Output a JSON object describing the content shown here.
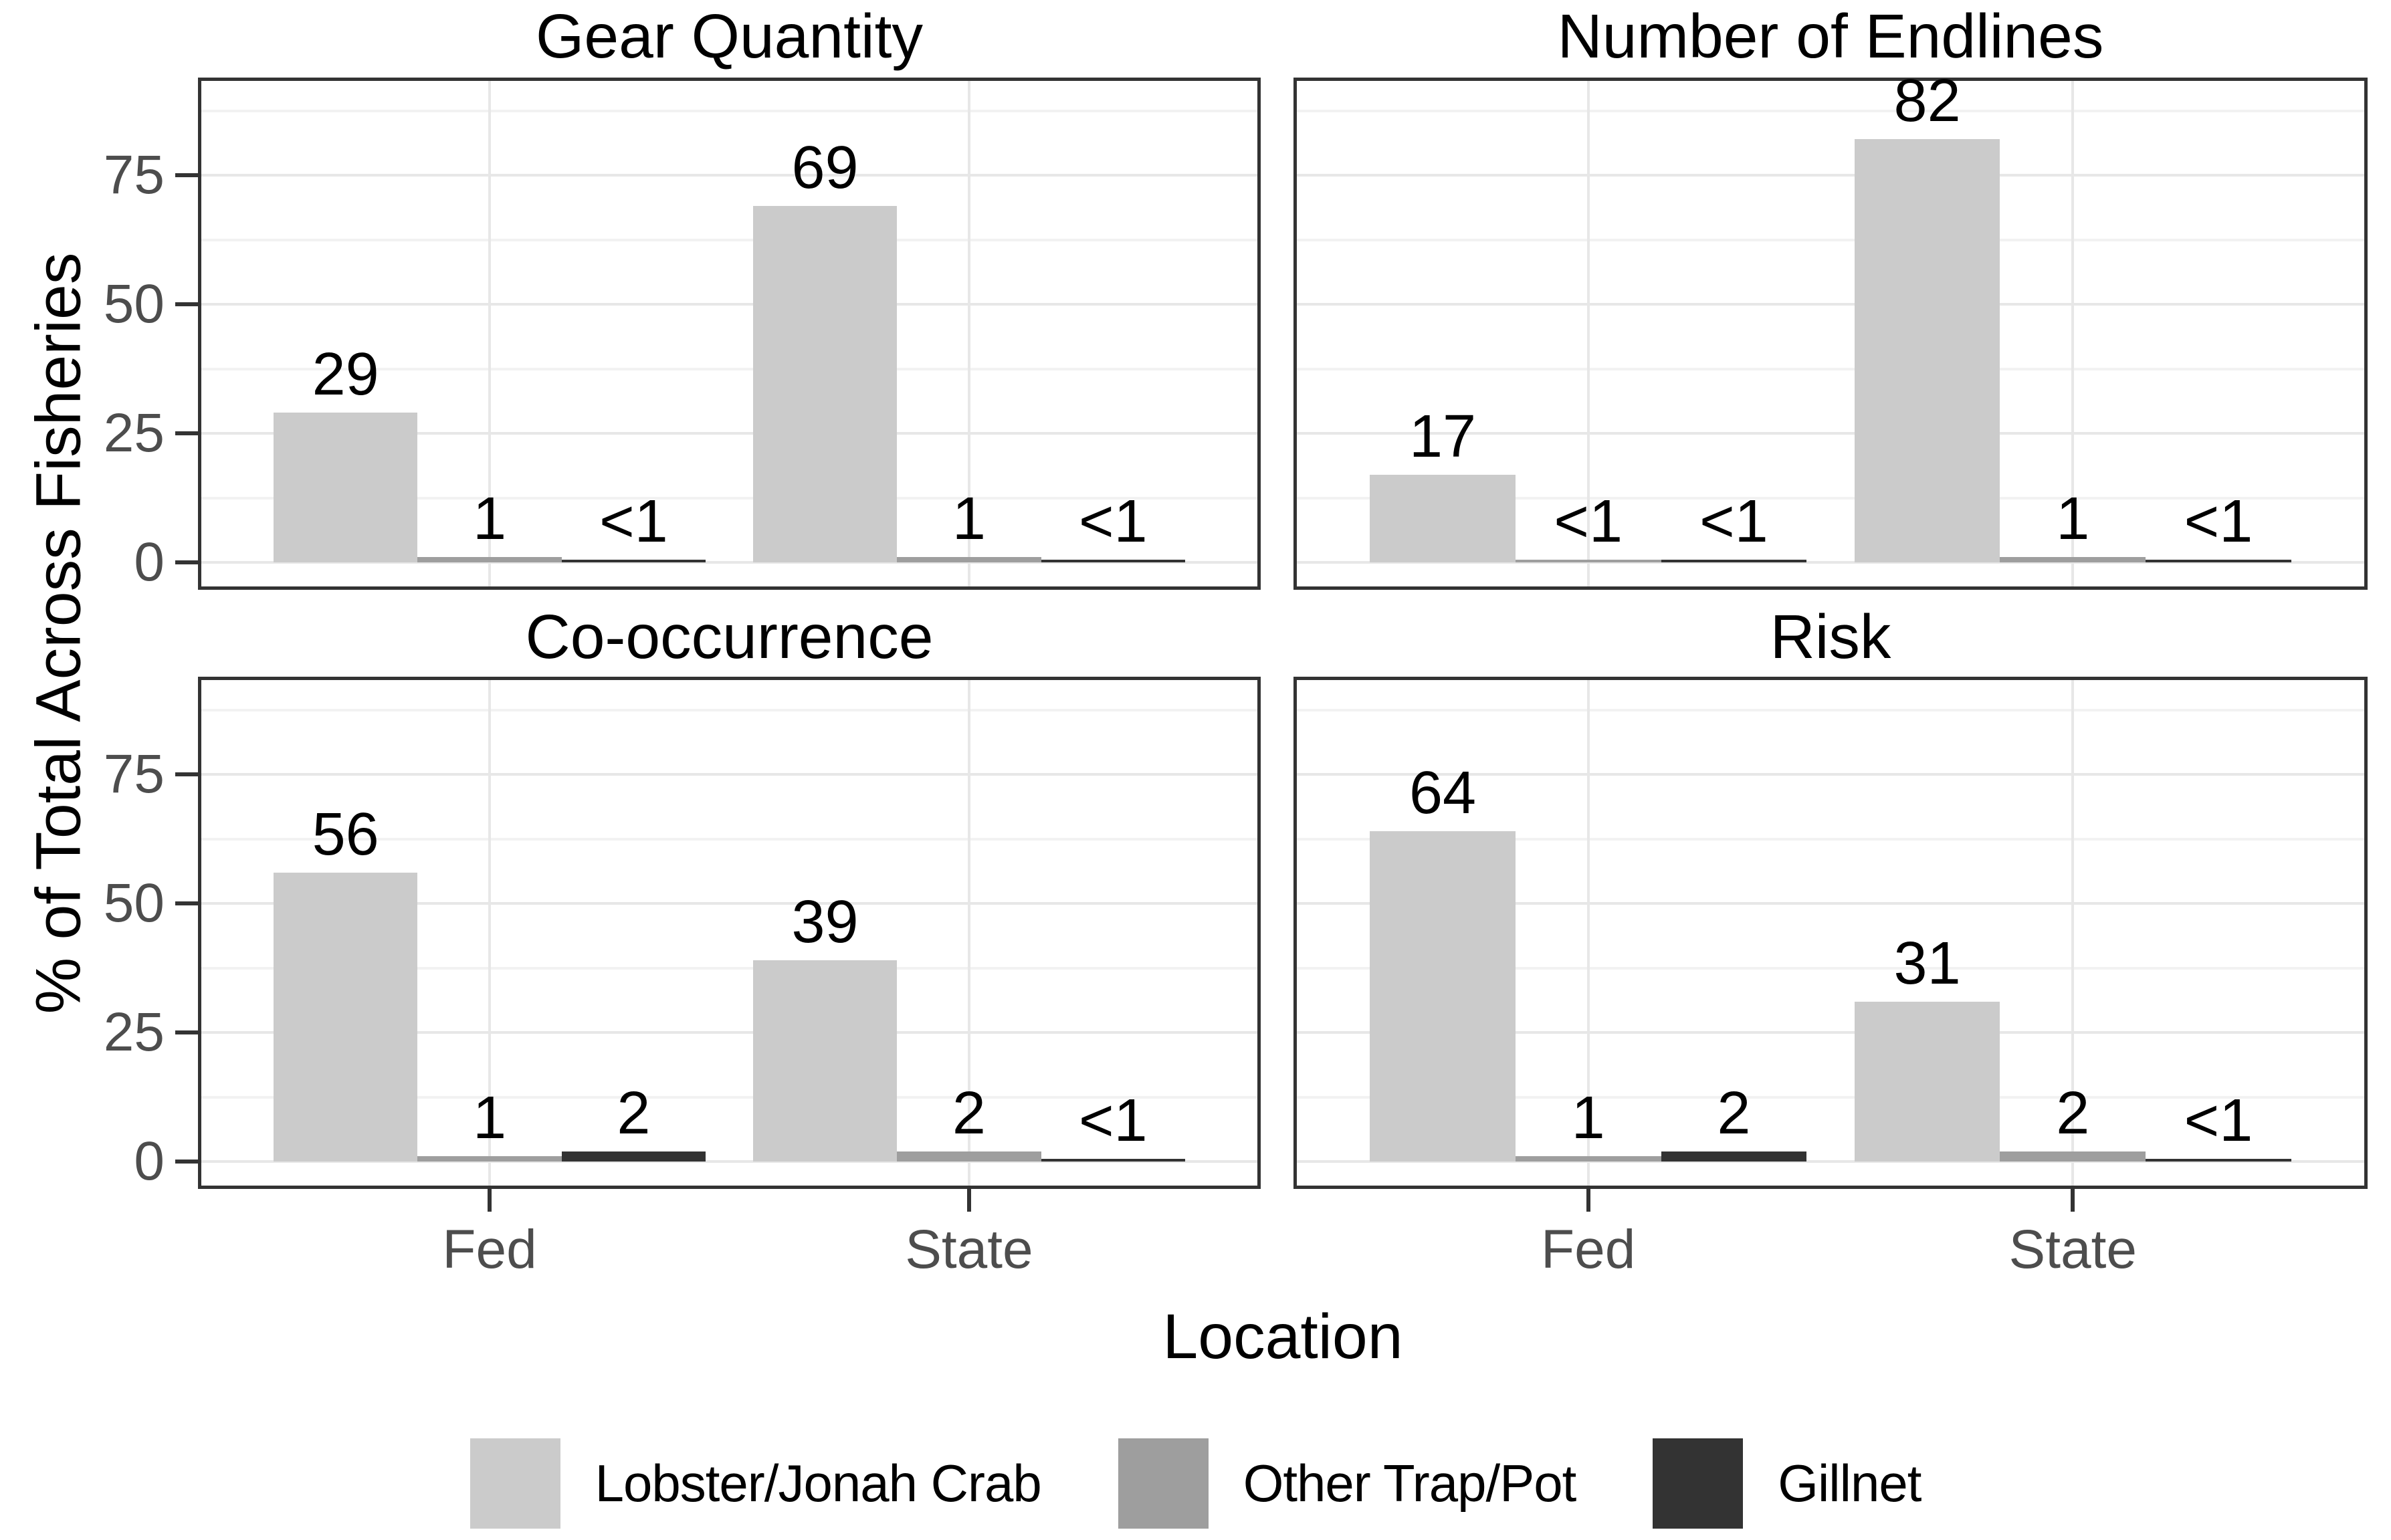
{
  "chart_data": {
    "type": "bar",
    "title": "",
    "xlabel": "Location",
    "ylabel": "% of Total Across Fisheries",
    "x_categories": [
      "Fed",
      "State"
    ],
    "y_ticks": [
      0,
      25,
      50,
      75
    ],
    "ylim": [
      -4.7,
      94.5
    ],
    "grid": {
      "on": true,
      "major_y": [
        0,
        25,
        50,
        75
      ],
      "minor_y": [
        12.5,
        37.5,
        62.5,
        87.5
      ],
      "major_x_at_category_centers": true
    },
    "legend_position": "bottom",
    "series": [
      {
        "name": "Lobster/Jonah Crab",
        "color": "#cbcbcb"
      },
      {
        "name": "Other Trap/Pot",
        "color": "#9e9e9e"
      },
      {
        "name": "Gillnet",
        "color": "#333333"
      }
    ],
    "facets": [
      {
        "title": "Gear Quantity",
        "groups": [
          {
            "category": "Fed",
            "labels": [
              "29",
              "1",
              "<1"
            ],
            "values": [
              29,
              1,
              0.5
            ]
          },
          {
            "category": "State",
            "labels": [
              "69",
              "1",
              "<1"
            ],
            "values": [
              69,
              1,
              0.5
            ]
          }
        ]
      },
      {
        "title": "Number of Endlines",
        "groups": [
          {
            "category": "Fed",
            "labels": [
              "17",
              "<1",
              "<1"
            ],
            "values": [
              17,
              0.5,
              0.5
            ]
          },
          {
            "category": "State",
            "labels": [
              "82",
              "1",
              "<1"
            ],
            "values": [
              82,
              1,
              0.5
            ]
          }
        ]
      },
      {
        "title": "Co-occurrence",
        "groups": [
          {
            "category": "Fed",
            "labels": [
              "56",
              "1",
              "2"
            ],
            "values": [
              56,
              1,
              2
            ]
          },
          {
            "category": "State",
            "labels": [
              "39",
              "2",
              "<1"
            ],
            "values": [
              39,
              2,
              0.5
            ]
          }
        ]
      },
      {
        "title": "Risk",
        "groups": [
          {
            "category": "Fed",
            "labels": [
              "64",
              "1",
              "2"
            ],
            "values": [
              64,
              1,
              2
            ]
          },
          {
            "category": "State",
            "labels": [
              "31",
              "2",
              "<1"
            ],
            "values": [
              31,
              2,
              0.5
            ]
          }
        ]
      }
    ]
  }
}
